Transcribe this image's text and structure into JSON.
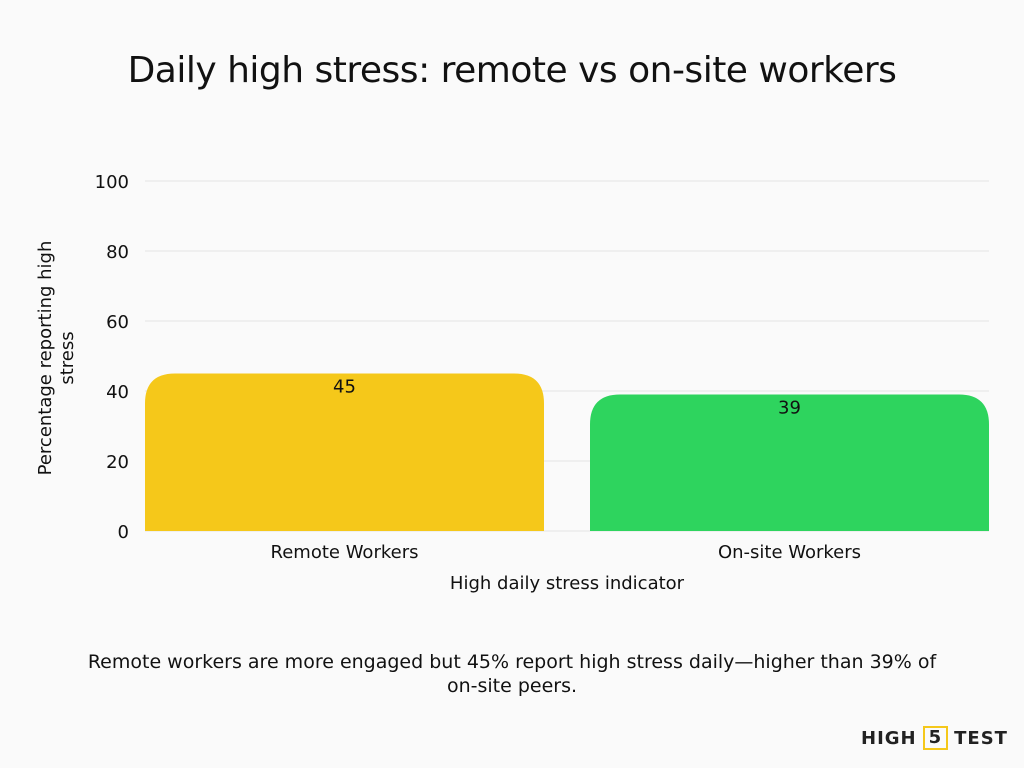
{
  "chart_data": {
    "type": "bar",
    "title": "Daily high stress: remote vs on-site workers",
    "categories": [
      "Remote Workers",
      "On-site Workers"
    ],
    "values": [
      45,
      39
    ],
    "data_labels": [
      "45",
      "39"
    ],
    "colors": [
      "#F5C81A",
      "#2ED45E"
    ],
    "xlabel": "High daily stress indicator",
    "ylabel": "Percentage reporting high stress",
    "ylim": [
      0,
      100
    ],
    "yticks": [
      0,
      20,
      40,
      60,
      80,
      100
    ],
    "grid": true,
    "legend": "none"
  },
  "caption": "Remote workers are more engaged but 45% report high stress daily—higher than 39% of on-site peers.",
  "logo": {
    "left": "HIGH",
    "mid": "5",
    "right": "TEST"
  }
}
